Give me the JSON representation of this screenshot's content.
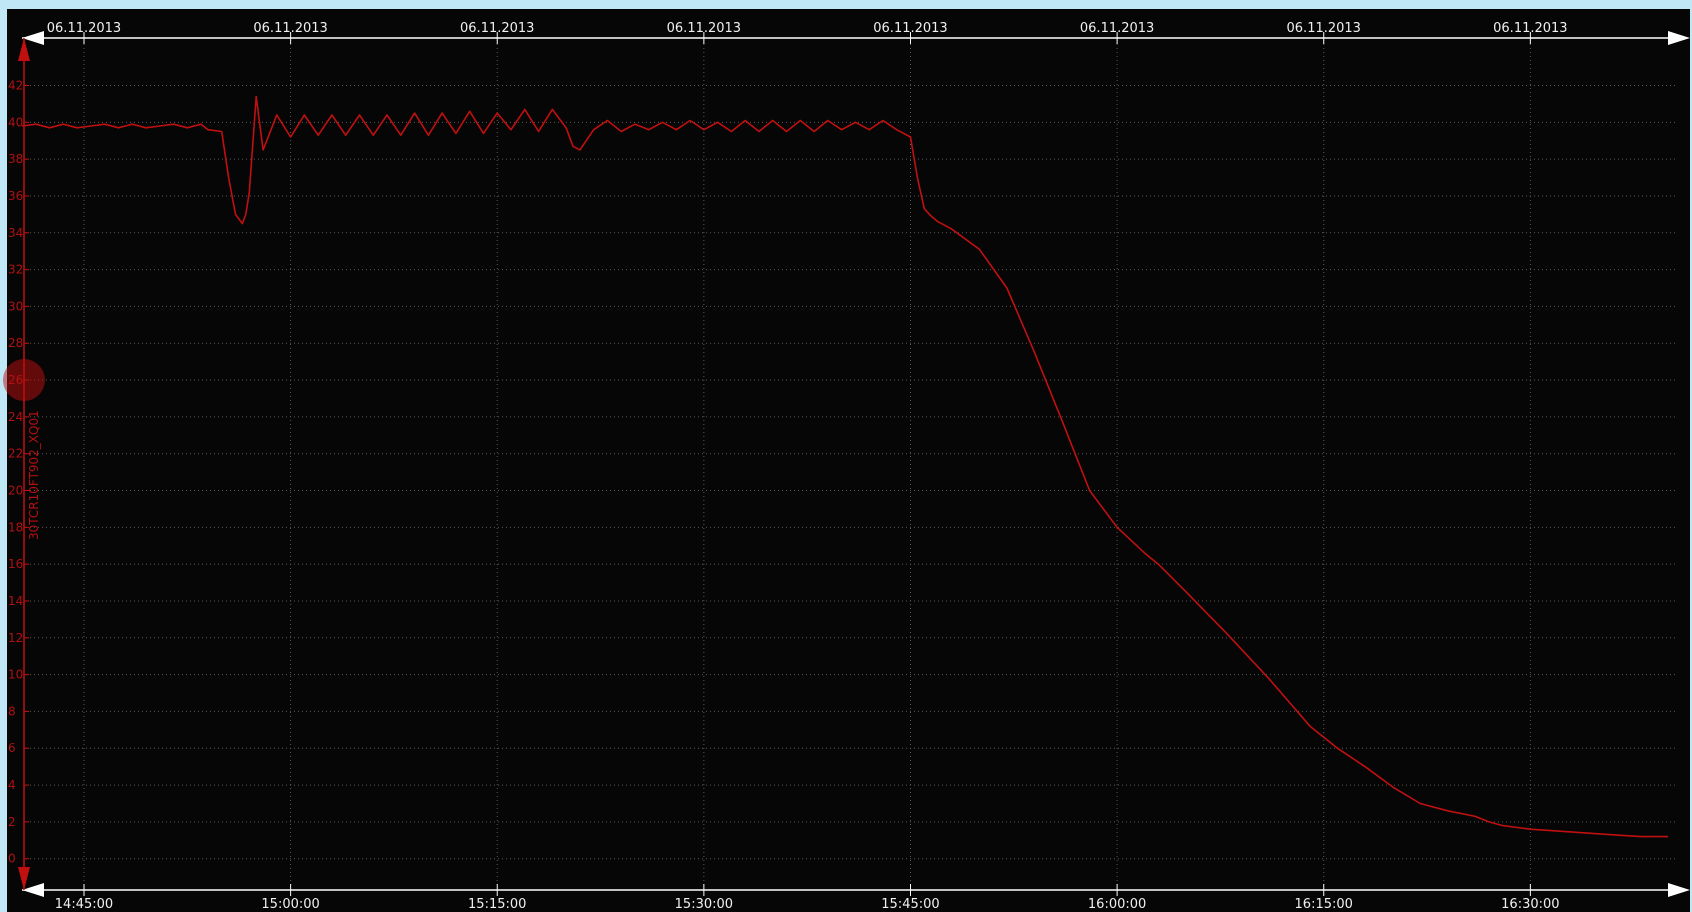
{
  "colors": {
    "frame_background": "#bfe7f5",
    "plot_background": "#060606",
    "axis_white": "#ffffff",
    "series_red": "#c01010",
    "grid": "#5a5a5a"
  },
  "chart_data": {
    "type": "line",
    "title": "",
    "x_top_labels": [
      "06.11.2013",
      "06.11.2013",
      "06.11.2013",
      "06.11.2013",
      "06.11.2013",
      "06.11.2013",
      "06.11.2013",
      "06.11.2013"
    ],
    "x_bottom_labels": [
      "14:45:00",
      "15:00:00",
      "15:15:00",
      "15:30:00",
      "15:45:00",
      "16:00:00",
      "16:15:00",
      "16:30:00"
    ],
    "xlim": [
      "14:40:30",
      "16:40:30"
    ],
    "ylabel": "30TCR10FT902_XQ01",
    "yticks": [
      0,
      2,
      4,
      6,
      8,
      10,
      12,
      14,
      16,
      18,
      20,
      22,
      24,
      26,
      28,
      30,
      32,
      34,
      36,
      38,
      40,
      42
    ],
    "ylim": [
      -1.7,
      44.2
    ],
    "grid": true,
    "cursor_value": 26,
    "series": [
      {
        "x": [
          "14:40:30",
          "14:41:30",
          "14:42:30",
          "14:43:30",
          "14:44:30",
          "14:45:30",
          "14:46:30",
          "14:47:30",
          "14:48:30",
          "14:49:30",
          "14:50:30",
          "14:51:30",
          "14:52:30",
          "14:53:30",
          "14:54:00",
          "14:55:00",
          "14:55:30",
          "14:56:00",
          "14:56:30",
          "14:56:45",
          "14:57:00",
          "14:57:30",
          "14:58:00",
          "14:59:00",
          "15:00:00",
          "15:01:00",
          "15:02:00",
          "15:03:00",
          "15:04:00",
          "15:05:00",
          "15:06:00",
          "15:07:00",
          "15:08:00",
          "15:09:00",
          "15:10:00",
          "15:11:00",
          "15:12:00",
          "15:13:00",
          "15:14:00",
          "15:15:00",
          "15:16:00",
          "15:17:00",
          "15:18:00",
          "15:19:00",
          "15:20:00",
          "15:20:30",
          "15:21:00",
          "15:22:00",
          "15:23:00",
          "15:24:00",
          "15:25:00",
          "15:26:00",
          "15:27:00",
          "15:28:00",
          "15:29:00",
          "15:30:00",
          "15:31:00",
          "15:32:00",
          "15:33:00",
          "15:34:00",
          "15:35:00",
          "15:36:00",
          "15:37:00",
          "15:38:00",
          "15:39:00",
          "15:40:00",
          "15:41:00",
          "15:42:00",
          "15:43:00",
          "15:44:00",
          "15:45:00",
          "15:45:30",
          "15:46:00",
          "15:46:30",
          "15:47:00",
          "15:48:00",
          "15:50:00",
          "15:52:00",
          "15:54:00",
          "15:56:00",
          "15:58:00",
          "16:00:00",
          "16:02:00",
          "16:03:00",
          "16:05:00",
          "16:08:00",
          "16:11:00",
          "16:14:00",
          "16:16:00",
          "16:18:00",
          "16:20:00",
          "16:22:00",
          "16:24:00",
          "16:26:00",
          "16:27:00",
          "16:28:00",
          "16:30:00",
          "16:32:00",
          "16:34:00",
          "16:36:00",
          "16:38:00",
          "16:40:00"
        ],
        "y": [
          39.8,
          39.9,
          39.7,
          39.9,
          39.7,
          39.8,
          39.9,
          39.7,
          39.9,
          39.7,
          39.8,
          39.9,
          39.7,
          39.9,
          39.6,
          39.5,
          37.0,
          35.0,
          34.5,
          35.0,
          36.2,
          41.4,
          38.5,
          40.4,
          39.2,
          40.4,
          39.3,
          40.4,
          39.3,
          40.4,
          39.3,
          40.4,
          39.3,
          40.5,
          39.3,
          40.5,
          39.4,
          40.6,
          39.4,
          40.5,
          39.6,
          40.7,
          39.5,
          40.7,
          39.7,
          38.7,
          38.5,
          39.6,
          40.1,
          39.5,
          39.9,
          39.6,
          40.0,
          39.6,
          40.1,
          39.6,
          40.0,
          39.5,
          40.1,
          39.5,
          40.1,
          39.5,
          40.1,
          39.5,
          40.1,
          39.6,
          40.0,
          39.6,
          40.1,
          39.6,
          39.2,
          37.0,
          35.3,
          34.9,
          34.6,
          34.2,
          33.1,
          31.0,
          27.5,
          23.8,
          20.0,
          18.0,
          16.6,
          16.0,
          14.5,
          12.2,
          9.8,
          7.2,
          6.0,
          5.0,
          3.9,
          3.0,
          2.6,
          2.3,
          2.0,
          1.8,
          1.6,
          1.5,
          1.4,
          1.3,
          1.2,
          1.2
        ]
      }
    ]
  }
}
